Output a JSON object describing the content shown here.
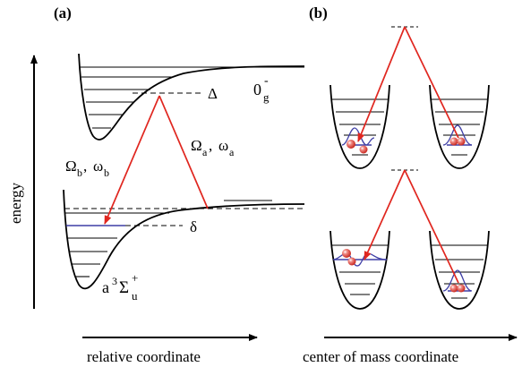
{
  "panels": {
    "a": {
      "label": "(a)"
    },
    "b": {
      "label": "(b)"
    }
  },
  "axes": {
    "energy": "energy",
    "relative": "relative coordinate",
    "com": "center of mass coordinate"
  },
  "potential_labels": {
    "upper_base": "0",
    "upper_sub": "g",
    "upper_sup": "-",
    "lower_a": "a",
    "lower_3": "3",
    "lower_sigma": "Σ",
    "lower_sup": "+",
    "lower_sub": "u"
  },
  "detunings": {
    "Delta": "Δ",
    "delta": "δ"
  },
  "beams": {
    "a": {
      "base": "Ω",
      "sub": "a",
      "sep": ", ",
      "base2": "ω",
      "sub2": "a"
    },
    "b": {
      "base": "Ω",
      "sub": "b",
      "sep": ", ",
      "base2": "ω",
      "sub2": "b"
    }
  },
  "colors": {
    "laser": "#e0261f",
    "wave": "#3f3fa6",
    "atom": "#e55b55",
    "line": "#000000"
  }
}
